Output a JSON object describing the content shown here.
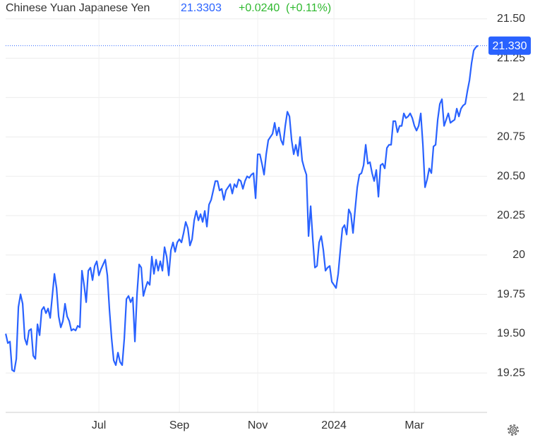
{
  "chart_data": {
    "type": "line",
    "title": "Chinese Yuan Japanese Yen",
    "price": "21.3303",
    "change": "+0.0240",
    "change_pct": "(+0.11%)",
    "last_label": "21.330",
    "color": "#2962ff",
    "grid": true,
    "ylim": [
      19.0,
      21.62
    ],
    "yticks": [
      {
        "value": 21.5,
        "label": "21.50"
      },
      {
        "value": 21.25,
        "label": "21.25"
      },
      21,
      20.75,
      {
        "value": 20.5,
        "label": "20.50"
      },
      20.25,
      20,
      19.75,
      {
        "value": 19.5,
        "label": "19.50"
      },
      19.25
    ],
    "xlim": [
      -2.7,
      227.3
    ],
    "xticks": [
      {
        "value": 44,
        "label": "Jul"
      },
      {
        "value": 82,
        "label": "Sep"
      },
      {
        "value": 119,
        "label": "Nov"
      },
      {
        "value": 155,
        "label": "2024"
      },
      {
        "value": 193,
        "label": "Mar"
      }
    ],
    "values": [
      19.5,
      19.44,
      19.45,
      19.27,
      19.26,
      19.34,
      19.67,
      19.75,
      19.69,
      19.47,
      19.43,
      19.52,
      19.53,
      19.36,
      19.34,
      19.56,
      19.49,
      19.65,
      19.67,
      19.63,
      19.66,
      19.6,
      19.74,
      19.88,
      19.79,
      19.61,
      19.54,
      19.58,
      19.69,
      19.61,
      19.58,
      19.52,
      19.53,
      19.52,
      19.55,
      19.54,
      19.9,
      19.81,
      19.7,
      19.9,
      19.92,
      19.84,
      19.93,
      19.96,
      19.87,
      19.91,
      19.94,
      19.97,
      19.87,
      19.65,
      19.47,
      19.33,
      19.3,
      19.38,
      19.32,
      19.3,
      19.47,
      19.72,
      19.74,
      19.7,
      19.73,
      19.45,
      19.75,
      19.94,
      19.92,
      19.74,
      19.79,
      19.83,
      19.81,
      19.99,
      19.88,
      19.97,
      19.9,
      19.96,
      19.9,
      20.05,
      19.99,
      19.87,
      20.03,
      20.08,
      20.02,
      20.08,
      20.1,
      20.08,
      20.14,
      20.21,
      20.17,
      20.06,
      20.1,
      20.22,
      20.28,
      20.22,
      20.26,
      20.21,
      20.28,
      20.18,
      20.32,
      20.35,
      20.41,
      20.47,
      20.47,
      20.41,
      20.42,
      20.35,
      20.41,
      20.43,
      20.45,
      20.39,
      20.45,
      20.43,
      20.48,
      20.47,
      20.42,
      20.47,
      20.5,
      20.49,
      20.51,
      20.52,
      20.36,
      20.64,
      20.64,
      20.58,
      20.51,
      20.64,
      20.73,
      20.75,
      20.77,
      20.84,
      20.76,
      20.81,
      20.73,
      20.7,
      20.82,
      20.91,
      20.88,
      20.73,
      20.64,
      20.7,
      20.63,
      20.75,
      20.6,
      20.55,
      20.51,
      20.12,
      20.31,
      20.1,
      19.92,
      19.93,
      20.08,
      20.12,
      20.03,
      19.9,
      19.92,
      19.93,
      19.83,
      19.81,
      19.79,
      19.88,
      20.03,
      20.17,
      20.19,
      20.13,
      20.29,
      20.26,
      20.14,
      20.29,
      20.43,
      20.51,
      20.52,
      20.57,
      20.7,
      20.58,
      20.59,
      20.52,
      20.47,
      20.54,
      20.37,
      20.57,
      20.58,
      20.55,
      20.68,
      20.7,
      20.7,
      20.85,
      20.85,
      20.78,
      20.82,
      20.82,
      20.9,
      20.87,
      20.88,
      20.9,
      20.87,
      20.82,
      20.79,
      20.82,
      20.9,
      20.7,
      20.43,
      20.48,
      20.55,
      20.52,
      20.69,
      20.7,
      20.86,
      20.96,
      20.99,
      20.82,
      20.86,
      20.9,
      20.84,
      20.85,
      20.86,
      20.93,
      20.88,
      20.93,
      20.95,
      20.96,
      21.04,
      21.11,
      21.22,
      21.3,
      21.32,
      21.33
    ]
  }
}
